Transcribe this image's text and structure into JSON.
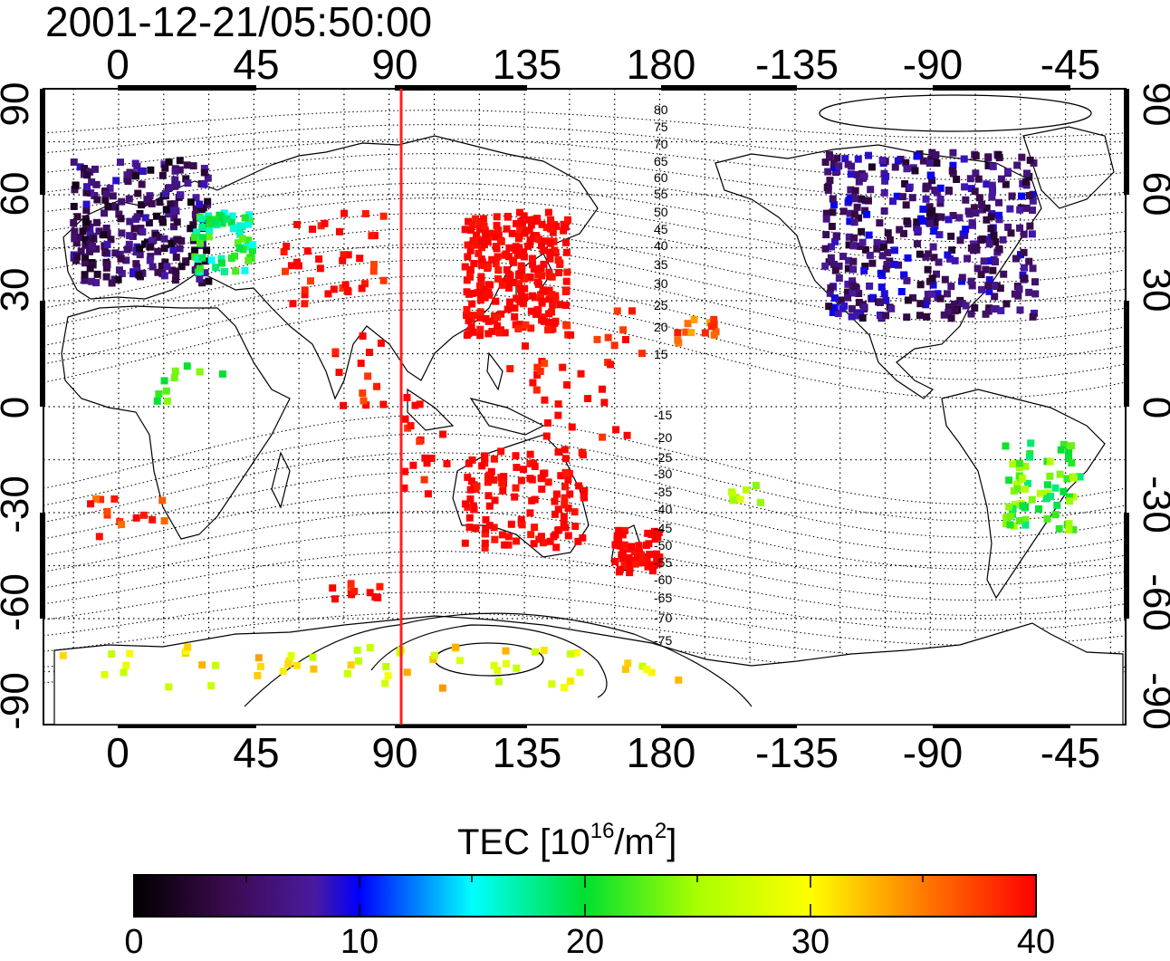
{
  "timestamp": "2001-12-21/05:50:00",
  "x_ticks": [
    "0",
    "45",
    "90",
    "135",
    "180",
    "-135",
    "-90",
    "-45"
  ],
  "y_ticks_left": [
    "90",
    "60",
    "30",
    "0",
    "-30",
    "-60",
    "-90"
  ],
  "y_ticks_right": [
    "90",
    "60",
    "30",
    "0",
    "-30",
    "-60",
    "-90"
  ],
  "contour_labels": [
    "80",
    "75",
    "70",
    "65",
    "60",
    "55",
    "50",
    "45",
    "40",
    "35",
    "30",
    "25",
    "20",
    "15",
    "-15",
    "-20",
    "-25",
    "-30",
    "-35",
    "-40",
    "-45",
    "-50",
    "-55",
    "-60",
    "-65",
    "-70",
    "-75"
  ],
  "colorbar": {
    "title_main": "TEC  [10",
    "title_exp1": "16",
    "title_mid": "/m",
    "title_exp2": "2",
    "title_end": "]",
    "ticks": [
      "0",
      "10",
      "20",
      "30",
      "40"
    ],
    "range": [
      0,
      40
    ]
  },
  "colors": {
    "terminator_line": "#ff2020",
    "high_tec": "#ff1a1a"
  },
  "map_data": {
    "projection": "equirectangular",
    "lon_range": [
      -25,
      335
    ],
    "lat_range": [
      -90,
      90
    ],
    "terminator_lon": 94,
    "tec_clusters": [
      {
        "region": "europe",
        "lon": [
          -15,
          30
        ],
        "lat": [
          35,
          70
        ],
        "tec": 5
      },
      {
        "region": "eastern-europe",
        "lon": [
          25,
          45
        ],
        "lat": [
          38,
          55
        ],
        "tec": 19
      },
      {
        "region": "north-america",
        "lon": [
          235,
          305
        ],
        "lat": [
          25,
          72
        ],
        "tec": 6
      },
      {
        "region": "east-asia",
        "lon": [
          115,
          150
        ],
        "lat": [
          20,
          55
        ],
        "tec": 40
      },
      {
        "region": "australia",
        "lon": [
          115,
          155
        ],
        "lat": [
          -40,
          -12
        ],
        "tec": 40
      },
      {
        "region": "new-zealand",
        "lon": [
          165,
          180
        ],
        "lat": [
          -47,
          -35
        ],
        "tec": 40
      },
      {
        "region": "south-america",
        "lon": [
          295,
          320
        ],
        "lat": [
          -35,
          -10
        ],
        "tec": 22
      },
      {
        "region": "antarctica-coast",
        "lon": [
          -20,
          200
        ],
        "lat": [
          -80,
          -68
        ],
        "tec": 30
      }
    ]
  }
}
